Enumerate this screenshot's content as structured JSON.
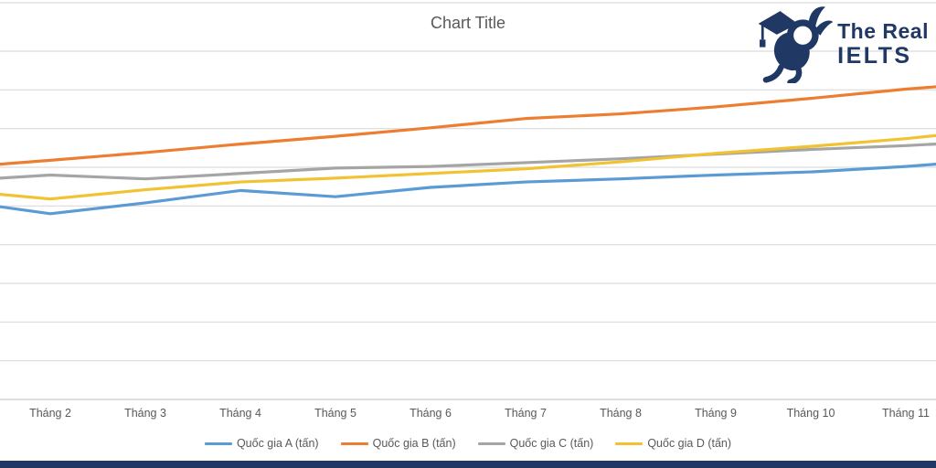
{
  "logo": {
    "line1": "The Real",
    "line2": "IELTS",
    "color": "#1F3864"
  },
  "footer": {
    "bar_color": "#1F3864"
  },
  "chart_data": {
    "type": "line",
    "title": "Chart Title",
    "title_color": "#595959",
    "categories": [
      "Tháng 2",
      "Tháng 3",
      "Tháng 4",
      "Tháng 5",
      "Tháng 6",
      "Tháng 7",
      "Tháng 8",
      "Tháng 9",
      "Tháng 10",
      "Tháng 11"
    ],
    "series": [
      {
        "name": "Quốc gia A (tấn)",
        "color": "#5B9BD5",
        "values": [
          24.0,
          25.4,
          27.0,
          26.2,
          27.4,
          28.1,
          28.5,
          29.0,
          29.4,
          30.1
        ],
        "edge_values": {
          "left": 24.9,
          "right": 30.4
        }
      },
      {
        "name": "Quốc gia B (tấn)",
        "color": "#ED7D31",
        "values": [
          30.9,
          31.9,
          33.0,
          34.0,
          35.1,
          36.3,
          36.9,
          37.8,
          38.9,
          40.1
        ],
        "edge_values": {
          "left": 30.4,
          "right": 40.4
        }
      },
      {
        "name": "Quốc gia C (tấn)",
        "color": "#A5A5A5",
        "values": [
          29.0,
          28.5,
          29.2,
          29.9,
          30.1,
          30.6,
          31.1,
          31.7,
          32.3,
          32.8
        ],
        "edge_values": {
          "left": 28.6,
          "right": 33.0
        }
      },
      {
        "name": "Quốc gia D (tấn)",
        "color": "#F1C232",
        "values": [
          25.9,
          27.1,
          28.1,
          28.6,
          29.2,
          29.8,
          30.7,
          31.8,
          32.7,
          33.7
        ],
        "edge_values": {
          "left": 26.5,
          "right": 34.1
        }
      }
    ],
    "ylim": [
      0,
      45
    ],
    "gridline_interval": 5,
    "gridline_color": "#DCDCDC",
    "axis_line_color": "#D2D2D2",
    "axis_label_color": "#595959",
    "legend_text_color": "#595959",
    "grid": true,
    "legend_position": "bottom",
    "units": "tấn"
  }
}
